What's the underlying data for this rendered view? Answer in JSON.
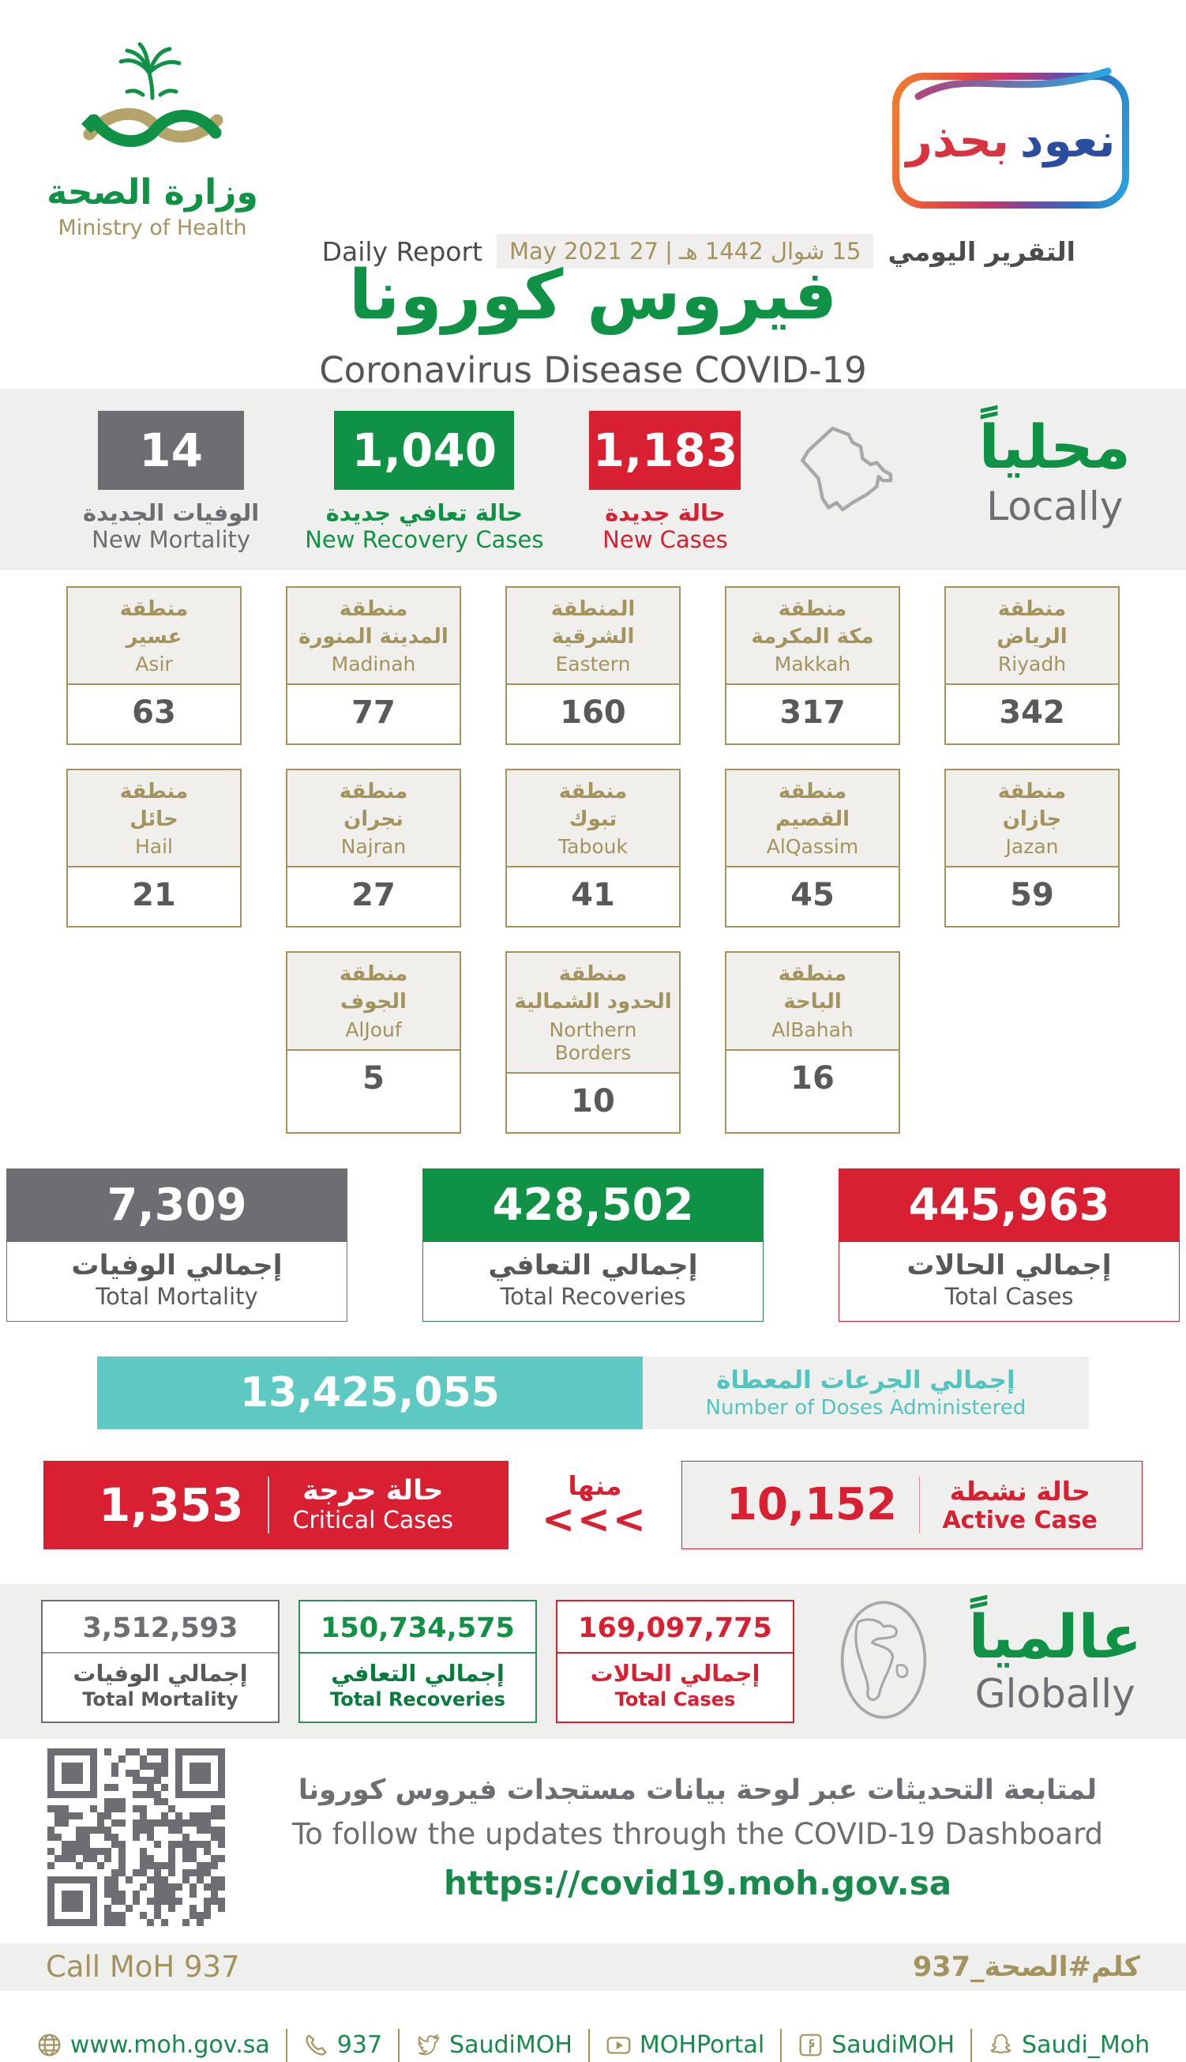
{
  "header": {
    "logo": {
      "ar": "وزارة الصحة",
      "en": "Ministry of Health"
    },
    "badge": {
      "word_right": "نعود",
      "word_left": "بحذر"
    },
    "report_label_ar": "التقرير اليومي",
    "date_hijri": "15 شوال 1442 هـ",
    "date_gregorian": "27 May 2021",
    "report_label_en": "Daily Report",
    "title_ar": "فيروس كورونا",
    "title_en": "Coronavirus Disease COVID-19"
  },
  "locally": {
    "title_ar": "محلياً",
    "title_en": "Locally",
    "stats": {
      "new_mortality": {
        "value": "14",
        "ar": "الوفيات الجديدة",
        "en": "New Mortality"
      },
      "new_recovery": {
        "value": "1,040",
        "ar": "حالة تعافي جديدة",
        "en": "New Recovery Cases"
      },
      "new_cases": {
        "value": "1,183",
        "ar": "حالة جديدة",
        "en": "New Cases"
      }
    }
  },
  "regions": {
    "riyadh": {
      "ar1": "منطقة",
      "ar2": "الرياض",
      "en": "Riyadh",
      "value": "342"
    },
    "makkah": {
      "ar1": "منطقة",
      "ar2": "مكة المكرمة",
      "en": "Makkah",
      "value": "317"
    },
    "eastern": {
      "ar1": "المنطقة",
      "ar2": "الشرقية",
      "en": "Eastern",
      "value": "160"
    },
    "madinah": {
      "ar1": "منطقة",
      "ar2": "المدينة المنورة",
      "en": "Madinah",
      "value": "77"
    },
    "asir": {
      "ar1": "منطقة",
      "ar2": "عسير",
      "en": "Asir",
      "value": "63"
    },
    "jazan": {
      "ar1": "منطقة",
      "ar2": "جازان",
      "en": "Jazan",
      "value": "59"
    },
    "alqassim": {
      "ar1": "منطقة",
      "ar2": "القصيم",
      "en": "AlQassim",
      "value": "45"
    },
    "tabouk": {
      "ar1": "منطقة",
      "ar2": "تبوك",
      "en": "Tabouk",
      "value": "41"
    },
    "najran": {
      "ar1": "منطقة",
      "ar2": "نجران",
      "en": "Najran",
      "value": "27"
    },
    "hail": {
      "ar1": "منطقة",
      "ar2": "حائل",
      "en": "Hail",
      "value": "21"
    },
    "albahah": {
      "ar1": "منطقة",
      "ar2": "الباحة",
      "en": "AlBahah",
      "value": "16"
    },
    "northern_borders": {
      "ar1": "منطقة",
      "ar2": "الحدود الشمالية",
      "en": "Northern Borders",
      "value": "10"
    },
    "aljouf": {
      "ar1": "منطقة",
      "ar2": "الجوف",
      "en": "AlJouf",
      "value": "5"
    }
  },
  "totals": {
    "mortality": {
      "value": "7,309",
      "ar": "إجمالي الوفيات",
      "en": "Total Mortality"
    },
    "recoveries": {
      "value": "428,502",
      "ar": "إجمالي التعافي",
      "en": "Total Recoveries"
    },
    "cases": {
      "value": "445,963",
      "ar": "إجمالي الحالات",
      "en": "Total Cases"
    }
  },
  "doses": {
    "value": "13,425,055",
    "ar": "إجمالي الجرعات المعطاة",
    "en": "Number of Doses Administered"
  },
  "critical": {
    "value": "1,353",
    "ar": "حالة حرجة",
    "en": "Critical Cases"
  },
  "of_them": {
    "ar": "منها",
    "arrows": "<<<"
  },
  "active": {
    "value": "10,152",
    "ar": "حالة نشطة",
    "en": "Active Case"
  },
  "globally": {
    "title_ar": "عالمياً",
    "title_en": "Globally",
    "mortality": {
      "value": "3,512,593",
      "ar": "إجمالي الوفيات",
      "en": "Total Mortality"
    },
    "recoveries": {
      "value": "150,734,575",
      "ar": "إجمالي التعافي",
      "en": "Total Recoveries"
    },
    "cases": {
      "value": "169,097,775",
      "ar": "إجمالي الحالات",
      "en": "Total Cases"
    }
  },
  "dashboard": {
    "ar": "لمتابعة التحديثات عبر لوحة بيانات مستجدات فيروس كورونا",
    "en": "To follow the updates through the COVID-19 Dashboard",
    "url": "https://covid19.moh.gov.sa"
  },
  "call": {
    "en": "Call MoH 937",
    "ar": "كلم#الصحة_937"
  },
  "footer": {
    "items": [
      {
        "icon": "globe-icon",
        "label": "www.moh.gov.sa"
      },
      {
        "icon": "phone-icon",
        "label": "937"
      },
      {
        "icon": "twitter-icon",
        "label": "SaudiMOH"
      },
      {
        "icon": "youtube-icon",
        "label": "MOHPortal"
      },
      {
        "icon": "facebook-icon",
        "label": "SaudiMOH"
      },
      {
        "icon": "snapchat-icon",
        "label": "Saudi_Moh"
      }
    ]
  },
  "colors": {
    "green": "#0f9245",
    "red": "#d92032",
    "gray": "#6d6e71",
    "gold": "#a3935f",
    "teal": "#5ec8c3"
  }
}
